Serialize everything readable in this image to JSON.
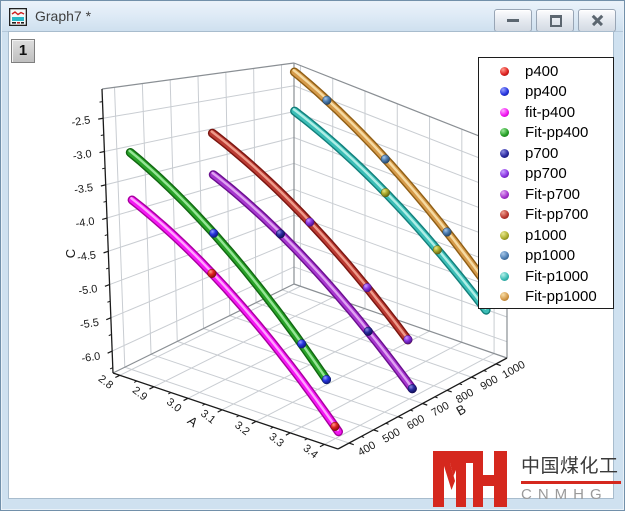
{
  "window": {
    "title": "Graph7 *",
    "layer_badge": "1"
  },
  "legend": {
    "items": [
      {
        "label": "p400",
        "color": "#E02222",
        "light": "#FF9C8C",
        "dark": "#7A0E08"
      },
      {
        "label": "pp400",
        "color": "#2635E0",
        "light": "#97A2FF",
        "dark": "#101777"
      },
      {
        "label": "fit-p400",
        "color": "#F316F3",
        "light": "#FFAAFF",
        "dark": "#A8009E"
      },
      {
        "label": "Fit-pp400",
        "color": "#28A228",
        "light": "#9CE89C",
        "dark": "#116611"
      },
      {
        "label": "p700",
        "color": "#2A2AA0",
        "light": "#8C8CE0",
        "dark": "#0E0E50"
      },
      {
        "label": "pp700",
        "color": "#8A35E2",
        "light": "#C9A0FF",
        "dark": "#480F80"
      },
      {
        "label": "Fit-p700",
        "color": "#A636CE",
        "light": "#E2AAF2",
        "dark": "#6A0E8E"
      },
      {
        "label": "Fit-pp700",
        "color": "#BA3A32",
        "light": "#F0A090",
        "dark": "#7A150F"
      },
      {
        "label": "p1000",
        "color": "#ADAD2E",
        "light": "#E8E890",
        "dark": "#5E5E10"
      },
      {
        "label": "pp1000",
        "color": "#4E7FB5",
        "light": "#A8C8E8",
        "dark": "#24425F"
      },
      {
        "label": "Fit-p1000",
        "color": "#3BBDB6",
        "light": "#B5F0E9",
        "dark": "#127F7B"
      },
      {
        "label": "Fit-pp1000",
        "color": "#D59A4A",
        "light": "#F7DEA8",
        "dark": "#8F5E14"
      }
    ]
  },
  "chart_data": {
    "type": "scatter3d",
    "axes": {
      "x": {
        "label": "A",
        "range": [
          2.78,
          3.44
        ],
        "ticks": [
          2.8,
          2.9,
          3.0,
          3.1,
          3.2,
          3.3,
          3.4
        ],
        "minor_step": 0.05
      },
      "y": {
        "label": "B",
        "range": [
          355,
          1045
        ],
        "ticks": [
          400,
          500,
          600,
          700,
          800,
          900,
          1000
        ],
        "minor_step": 50
      },
      "z": {
        "label": "C",
        "range": [
          -6.33,
          -2.06
        ],
        "ticks": [
          -2.5,
          -3.0,
          -3.5,
          -4.0,
          -4.5,
          -5.0,
          -5.5,
          -6.0
        ],
        "minor_step": 0.25
      }
    },
    "series": [
      {
        "name": "p400",
        "type": "scatter",
        "B": 400,
        "points": [
          [
            3.05,
            -4.4
          ],
          [
            3.4,
            -6.14
          ]
        ]
      },
      {
        "name": "pp400",
        "type": "scatter",
        "B": 400,
        "points": [
          [
            3.06,
            -3.76
          ],
          [
            3.31,
            -5.01
          ],
          [
            3.38,
            -5.44
          ]
        ]
      },
      {
        "name": "fit-p400",
        "type": "fit",
        "B": 400,
        "curve": {
          "A_start": 2.82,
          "A_end": 3.41,
          "c0": -3.66,
          "c1": -2.1,
          "c2": -3.4
        }
      },
      {
        "name": "Fit-pp400",
        "type": "fit",
        "B": 400,
        "curve": {
          "A_start": 2.82,
          "A_end": 3.38,
          "c0": -2.93,
          "c1": -2.3,
          "c2": -3.5
        }
      },
      {
        "name": "p700",
        "type": "scatter",
        "B": 700,
        "points": [
          [
            3.02,
            -4.24
          ],
          [
            3.28,
            -5.39
          ],
          [
            3.41,
            -6.13
          ]
        ]
      },
      {
        "name": "pp700",
        "type": "scatter",
        "B": 700,
        "points": [
          [
            3.11,
            -3.85
          ],
          [
            3.28,
            -4.63
          ],
          [
            3.4,
            -5.29
          ]
        ]
      },
      {
        "name": "Fit-p700",
        "type": "fit",
        "B": 700,
        "curve": {
          "A_start": 2.82,
          "A_end": 3.41,
          "c0": -3.6,
          "c1": -2.2,
          "c2": -3.2
        }
      },
      {
        "name": "Fit-pp700",
        "type": "fit",
        "B": 700,
        "curve": {
          "A_start": 2.82,
          "A_end": 3.4,
          "c0": -2.9,
          "c1": -2.1,
          "c2": -3.15
        }
      },
      {
        "name": "p1000",
        "type": "scatter",
        "B": 1000,
        "points": [
          [
            3.1,
            -3.75
          ],
          [
            3.26,
            -4.49
          ]
        ]
      },
      {
        "name": "pp1000",
        "type": "scatter",
        "B": 1000,
        "points": [
          [
            2.92,
            -2.4
          ],
          [
            3.1,
            -3.1
          ],
          [
            3.29,
            -4.07
          ]
        ]
      },
      {
        "name": "Fit-p1000",
        "type": "fit",
        "B": 1000,
        "curve": {
          "A_start": 2.82,
          "A_end": 3.41,
          "c0": -2.8,
          "c1": -2.2,
          "c2": -3.2
        }
      },
      {
        "name": "Fit-pp1000",
        "type": "fit",
        "B": 1000,
        "curve": {
          "A_start": 2.82,
          "A_end": 3.4,
          "c0": -2.05,
          "c1": -2.5,
          "c2": -3.3
        }
      }
    ],
    "draw_pairs": [
      [
        "Fit-pp1000",
        "pp1000"
      ],
      [
        "Fit-p1000",
        "p1000"
      ],
      [
        "Fit-pp700",
        "pp700"
      ],
      [
        "Fit-p700",
        "p700"
      ],
      [
        "Fit-pp400",
        "pp400"
      ],
      [
        "fit-p400",
        "p400"
      ]
    ]
  },
  "watermark": {
    "cn": "中国煤化工",
    "en": "CNMHG",
    "accent": "#D5281E"
  },
  "colors": {
    "grid": "#C9CDD2",
    "box_edge": "#8A8F94",
    "axis": "#1A1A1A"
  }
}
